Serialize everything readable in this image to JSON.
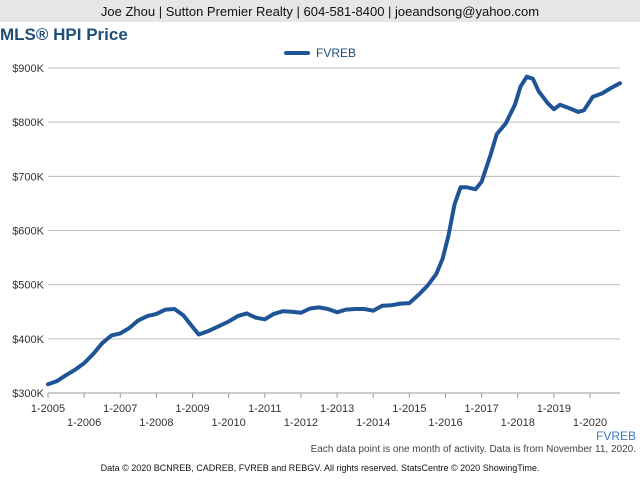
{
  "header": {
    "contact": "Joe Zhou | Sutton Premier Realty | 604-581-8400 | joeandsong@yahoo.com"
  },
  "chart_data": {
    "type": "line",
    "title": "MLS® HPI Price",
    "xlabel": "",
    "ylabel": "",
    "ylim": [
      300000,
      900000
    ],
    "y_ticks": [
      {
        "value": 300000,
        "label": "$300K"
      },
      {
        "value": 400000,
        "label": "$400K"
      },
      {
        "value": 500000,
        "label": "$500K"
      },
      {
        "value": 600000,
        "label": "$600K"
      },
      {
        "value": 700000,
        "label": "$700K"
      },
      {
        "value": 800000,
        "label": "$800K"
      },
      {
        "value": 900000,
        "label": "$900K"
      }
    ],
    "x_ticks": [
      {
        "t": 2005,
        "label": "1-2005"
      },
      {
        "t": 2006,
        "label": "1-2006"
      },
      {
        "t": 2007,
        "label": "1-2007"
      },
      {
        "t": 2008,
        "label": "1-2008"
      },
      {
        "t": 2009,
        "label": "1-2009"
      },
      {
        "t": 2010,
        "label": "1-2010"
      },
      {
        "t": 2011,
        "label": "1-2011"
      },
      {
        "t": 2012,
        "label": "1-2012"
      },
      {
        "t": 2013,
        "label": "1-2013"
      },
      {
        "t": 2014,
        "label": "1-2014"
      },
      {
        "t": 2015,
        "label": "1-2015"
      },
      {
        "t": 2016,
        "label": "1-2016"
      },
      {
        "t": 2017,
        "label": "1-2017"
      },
      {
        "t": 2018,
        "label": "1-2018"
      },
      {
        "t": 2019,
        "label": "1-2019"
      },
      {
        "t": 2020,
        "label": "1-2020"
      }
    ],
    "x_domain": [
      2005,
      2020.83
    ],
    "grid": true,
    "legend_position": "top-center",
    "series": [
      {
        "name": "FVREB",
        "color": "#1f5597",
        "points": [
          [
            2005.0,
            316000
          ],
          [
            2005.25,
            322000
          ],
          [
            2005.5,
            333000
          ],
          [
            2005.75,
            343000
          ],
          [
            2006.0,
            355000
          ],
          [
            2006.25,
            372000
          ],
          [
            2006.5,
            392000
          ],
          [
            2006.75,
            406000
          ],
          [
            2007.0,
            410000
          ],
          [
            2007.25,
            420000
          ],
          [
            2007.5,
            434000
          ],
          [
            2007.75,
            442000
          ],
          [
            2008.0,
            446000
          ],
          [
            2008.25,
            454000
          ],
          [
            2008.5,
            455000
          ],
          [
            2008.75,
            443000
          ],
          [
            2009.0,
            422000
          ],
          [
            2009.17,
            408000
          ],
          [
            2009.42,
            414000
          ],
          [
            2009.75,
            424000
          ],
          [
            2010.0,
            432000
          ],
          [
            2010.25,
            442000
          ],
          [
            2010.5,
            447000
          ],
          [
            2010.75,
            439000
          ],
          [
            2011.0,
            436000
          ],
          [
            2011.25,
            446000
          ],
          [
            2011.5,
            451000
          ],
          [
            2011.75,
            450000
          ],
          [
            2012.0,
            448000
          ],
          [
            2012.25,
            456000
          ],
          [
            2012.5,
            458000
          ],
          [
            2012.75,
            455000
          ],
          [
            2013.0,
            449000
          ],
          [
            2013.25,
            454000
          ],
          [
            2013.5,
            455000
          ],
          [
            2013.75,
            455000
          ],
          [
            2014.0,
            452000
          ],
          [
            2014.25,
            461000
          ],
          [
            2014.5,
            462000
          ],
          [
            2014.75,
            465000
          ],
          [
            2015.0,
            466000
          ],
          [
            2015.25,
            481000
          ],
          [
            2015.5,
            498000
          ],
          [
            2015.75,
            520000
          ],
          [
            2015.92,
            548000
          ],
          [
            2016.08,
            590000
          ],
          [
            2016.25,
            648000
          ],
          [
            2016.42,
            680000
          ],
          [
            2016.58,
            680000
          ],
          [
            2016.83,
            676000
          ],
          [
            2017.0,
            690000
          ],
          [
            2017.25,
            740000
          ],
          [
            2017.42,
            778000
          ],
          [
            2017.67,
            798000
          ],
          [
            2017.92,
            832000
          ],
          [
            2018.08,
            866000
          ],
          [
            2018.25,
            884000
          ],
          [
            2018.42,
            880000
          ],
          [
            2018.58,
            857000
          ],
          [
            2018.83,
            835000
          ],
          [
            2019.0,
            824000
          ],
          [
            2019.17,
            832000
          ],
          [
            2019.42,
            826000
          ],
          [
            2019.67,
            819000
          ],
          [
            2019.83,
            822000
          ],
          [
            2020.08,
            847000
          ],
          [
            2020.33,
            853000
          ],
          [
            2020.58,
            863000
          ],
          [
            2020.83,
            872000
          ]
        ]
      }
    ]
  },
  "footer": {
    "series_label": "FVREB",
    "footnote": "Each data point is one month of activity. Data is from November 11, 2020.",
    "copyright": "Data © 2020 BCNREB, CADREB, FVREB and REBGV. All rights reserved. StatsCentre © 2020 ShowingTime."
  }
}
